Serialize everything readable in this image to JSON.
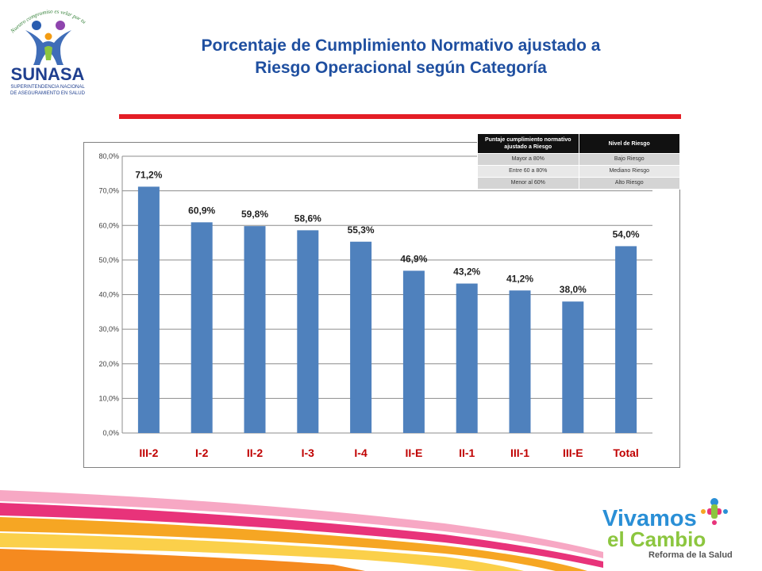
{
  "header": {
    "logo": {
      "name": "SUNASA",
      "tagline": "Nuestro compromiso es velar por tu Salud",
      "subtitle_line1": "SUPERINTENDENCIA NACIONAL",
      "subtitle_line2": "DE ASEGURAMIENTO EN SALUD"
    },
    "title_line1": "Porcentaje de Cumplimiento Normativo ajustado a",
    "title_line2": "Riesgo Operacional según Categoría"
  },
  "colors": {
    "title": "#1f4fa0",
    "rule": "#e41e26",
    "bar": "#4f81bd",
    "category_label": "#c00000"
  },
  "risk_table": {
    "headers": [
      "Puntaje cumplimiento normativo ajustado a Riesgo",
      "Nivel de Riesgo"
    ],
    "rows": [
      [
        "Mayor a 80%",
        "Bajo Riesgo"
      ],
      [
        "Entre 60 a 80%",
        "Mediano Riesgo"
      ],
      [
        "Menor al 60%",
        "Alto Riesgo"
      ]
    ]
  },
  "chart_data": {
    "type": "bar",
    "categories": [
      "III-2",
      "I-2",
      "II-2",
      "I-3",
      "I-4",
      "II-E",
      "II-1",
      "III-1",
      "III-E",
      "Total"
    ],
    "values": [
      71.2,
      60.9,
      59.8,
      58.6,
      55.3,
      46.9,
      43.2,
      41.2,
      38.0,
      54.0
    ],
    "value_labels": [
      "71,2%",
      "60,9%",
      "59,8%",
      "58,6%",
      "55,3%",
      "46,9%",
      "43,2%",
      "41,2%",
      "38,0%",
      "54,0%"
    ],
    "yticks": [
      0,
      10,
      20,
      30,
      40,
      50,
      60,
      70,
      80
    ],
    "ytick_labels": [
      "0,0%",
      "10,0%",
      "20,0%",
      "30,0%",
      "40,0%",
      "50,0%",
      "60,0%",
      "70,0%",
      "80,0%"
    ],
    "ylim": [
      0,
      80
    ],
    "grid": true,
    "title": "",
    "xlabel": "",
    "ylabel": ""
  },
  "footer": {
    "logo": {
      "line1": "Vivamos",
      "line2": "el Cambio",
      "line3": "Reforma de la Salud"
    }
  }
}
